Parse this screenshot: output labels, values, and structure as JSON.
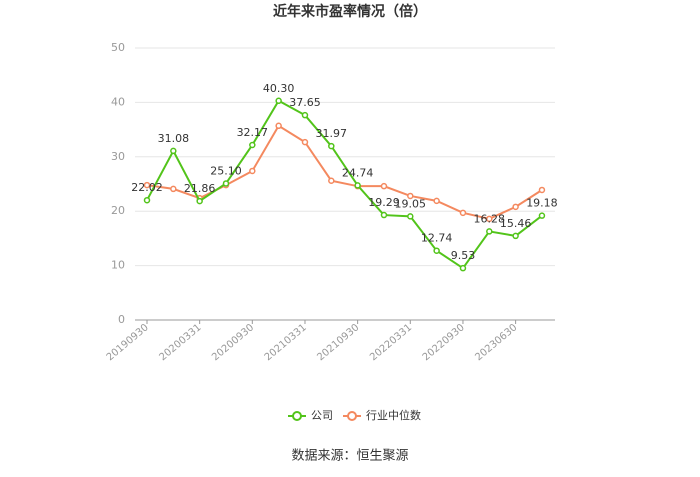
{
  "chart_data": {
    "type": "line",
    "title": "近年来市盈率情况（倍）",
    "source": "数据来源：恒生聚源",
    "categories": [
      "20190930",
      null,
      "20200331",
      null,
      "20200930",
      null,
      "20210331",
      null,
      "20210930",
      null,
      "20220331",
      null,
      "20220930",
      null,
      "20230630",
      null
    ],
    "series": [
      {
        "name": "公司",
        "color": "#52c41a",
        "values": [
          22.02,
          31.08,
          21.86,
          25.1,
          32.17,
          40.3,
          37.65,
          31.97,
          24.74,
          19.29,
          19.05,
          12.74,
          9.53,
          16.28,
          15.46,
          19.18
        ],
        "value_labels": [
          "22.02",
          "31.08",
          "21.86",
          "25.10",
          "32.17",
          "40.30",
          "37.65",
          "31.97",
          "24.74",
          "19.29",
          "19.05",
          "12.74",
          "9.53",
          "16.28",
          "15.46",
          "19.18"
        ]
      },
      {
        "name": "行业中位数",
        "color": "#f4895f",
        "values": [
          24.8,
          24.1,
          22.4,
          24.8,
          27.4,
          35.7,
          32.7,
          25.6,
          24.6,
          24.6,
          22.8,
          21.9,
          19.7,
          18.6,
          20.8,
          23.9
        ]
      }
    ],
    "ylim": [
      0,
      50
    ],
    "yticks": [
      0,
      10,
      20,
      30,
      40,
      50
    ],
    "grid": true,
    "legend": "bottom"
  }
}
